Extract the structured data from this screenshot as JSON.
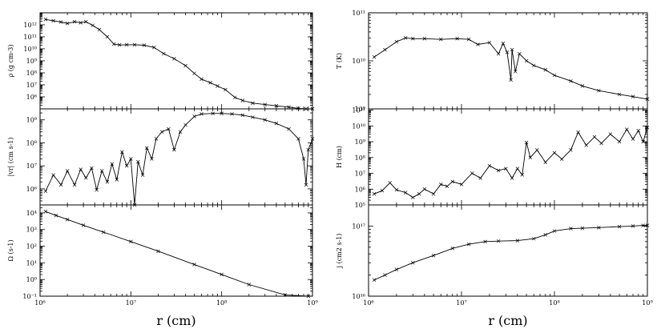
{
  "chart_data": [
    {
      "id": "rho",
      "type": "line",
      "ylabel": "ρ (g cm-3)",
      "xlabel": "",
      "xscale": "log",
      "yscale": "log",
      "xlim": [
        1000000.0,
        1000000000.0
      ],
      "ylim": [
        100000.0,
        10000000000000.0
      ],
      "xticks": [],
      "yticks": [
        {
          "v": 1000000.0,
          "t": "10⁶"
        },
        {
          "v": 10000000.0,
          "t": "10⁷"
        },
        {
          "v": 100000000.0,
          "t": "10⁸"
        },
        {
          "v": 1000000000.0,
          "t": "10⁹"
        },
        {
          "v": 10000000000.0,
          "t": "10¹⁰"
        },
        {
          "v": 100000000000.0,
          "t": "10¹¹"
        },
        {
          "v": 1000000000000.0,
          "t": "10¹²"
        }
      ],
      "x": [
        1150000.0,
        1400000.0,
        1700000.0,
        2000000.0,
        2400000.0,
        2800000.0,
        3200000.0,
        3800000.0,
        4500000.0,
        5500000.0,
        6500000.0,
        7500000.0,
        9000000.0,
        11000000.0,
        14000000.0,
        18000000.0,
        23000000.0,
        30000000.0,
        40000000.0,
        50000000.0,
        60000000.0,
        75000000.0,
        90000000.0,
        110000000.0,
        140000000.0,
        170000000.0,
        220000000.0,
        300000000.0,
        400000000.0,
        550000000.0,
        700000000.0,
        850000000.0,
        1000000000.0
      ],
      "y": [
        2800000000000.0,
        2200000000000.0,
        1700000000000.0,
        1300000000000.0,
        1800000000000.0,
        1500000000000.0,
        1800000000000.0,
        900000000000.0,
        400000000000.0,
        100000000000.0,
        25000000000.0,
        21000000000.0,
        22000000000.0,
        22000000000.0,
        20000000000.0,
        13000000000.0,
        4000000000.0,
        1500000000.0,
        400000000.0,
        90000000.0,
        30000000.0,
        15000000.0,
        8000000.0,
        4000000.0,
        900000.0,
        500000.0,
        300000.0,
        230000.0,
        180000.0,
        140000.0,
        110000.0,
        80000.0,
        50000.0
      ]
    },
    {
      "id": "vr",
      "type": "line",
      "ylabel": "|vr| (cm s-1)",
      "xlabel": "",
      "xscale": "log",
      "yscale": "log",
      "xlim": [
        1000000.0,
        1000000000.0
      ],
      "ylim": [
        200000.0,
        3000000000.0
      ],
      "xticks": [],
      "yticks": [
        {
          "v": 1000000.0,
          "t": "10⁶"
        },
        {
          "v": 10000000.0,
          "t": "10⁷"
        },
        {
          "v": 100000000.0,
          "t": "10⁸"
        },
        {
          "v": 1000000000.0,
          "t": "10⁹"
        }
      ],
      "x": [
        1150000.0,
        1400000.0,
        1700000.0,
        2000000.0,
        2400000.0,
        2800000.0,
        3200000.0,
        3700000.0,
        4200000.0,
        4800000.0,
        5500000.0,
        6200000.0,
        7000000.0,
        8000000.0,
        9000000.0,
        10000000.0,
        11000000.0,
        12000000.0,
        13500000.0,
        15000000.0,
        17000000.0,
        19000000.0,
        22000000.0,
        26000000.0,
        30000000.0,
        35000000.0,
        40000000.0,
        50000000.0,
        60000000.0,
        80000000.0,
        100000000.0,
        130000000.0,
        170000000.0,
        220000000.0,
        300000000.0,
        400000000.0,
        550000000.0,
        700000000.0,
        800000000.0,
        850000000.0,
        900000000.0,
        1000000000.0
      ],
      "y": [
        800000.0,
        4000000.0,
        1500000.0,
        6000000.0,
        1500000.0,
        7000000.0,
        3000000.0,
        8000000.0,
        900000.0,
        6000000.0,
        2000000.0,
        12000000.0,
        2500000.0,
        40000000.0,
        10000000.0,
        20000000.0,
        200000.0,
        15000000.0,
        4000000.0,
        60000000.0,
        20000000.0,
        150000000.0,
        300000000.0,
        400000000.0,
        50000000.0,
        300000000.0,
        600000000.0,
        1400000000.0,
        1800000000.0,
        1900000000.0,
        1900000000.0,
        1800000000.0,
        1600000000.0,
        1300000000.0,
        1000000000.0,
        700000000.0,
        400000000.0,
        150000000.0,
        20000000.0,
        1500000.0,
        50000000.0,
        150000000.0
      ]
    },
    {
      "id": "omega",
      "type": "line",
      "ylabel": "Ω (s-1)",
      "xlabel": "r (cm)",
      "xscale": "log",
      "yscale": "log",
      "xlim": [
        1000000.0,
        1000000000.0
      ],
      "ylim": [
        0.1,
        30000.0
      ],
      "xticks": [
        {
          "v": 1000000.0,
          "t": "10⁶"
        },
        {
          "v": 10000000.0,
          "t": "10⁷"
        },
        {
          "v": 100000000.0,
          "t": "10⁸"
        },
        {
          "v": 1000000000.0,
          "t": "10⁹"
        }
      ],
      "yticks": [
        {
          "v": 0.1,
          "t": "10⁻¹"
        },
        {
          "v": 1,
          "t": "10⁰"
        },
        {
          "v": 10,
          "t": "10¹"
        },
        {
          "v": 100,
          "t": "10²"
        },
        {
          "v": 1000,
          "t": "10³"
        },
        {
          "v": 10000,
          "t": "10⁴"
        }
      ],
      "x": [
        1150000.0,
        1500000.0,
        2000000.0,
        3000000.0,
        5000000.0,
        10000000.0,
        20000000.0,
        50000000.0,
        100000000.0,
        200000000.0,
        500000000.0,
        900000000.0
      ],
      "y": [
        12000.0,
        7000.0,
        4000.0,
        1800.0,
        700.0,
        190.0,
        50.0,
        8,
        2,
        0.5,
        0.12,
        0.08
      ]
    },
    {
      "id": "temp",
      "type": "line",
      "ylabel": "T (K)",
      "xlabel": "",
      "xscale": "log",
      "yscale": "log",
      "xlim": [
        1000000.0,
        1000000000.0
      ],
      "ylim": [
        1000000000.0,
        100000000000.0
      ],
      "xticks": [],
      "yticks": [
        {
          "v": 1000000000.0,
          "t": "10⁹"
        },
        {
          "v": 10000000000.0,
          "t": "10¹⁰"
        },
        {
          "v": 100000000000.0,
          "t": "10¹¹"
        }
      ],
      "x": [
        1150000.0,
        1500000.0,
        2000000.0,
        2500000.0,
        3000000.0,
        4000000.0,
        6000000.0,
        9000000.0,
        12000000.0,
        15000000.0,
        20000000.0,
        25000000.0,
        28000000.0,
        31000000.0,
        34000000.0,
        35000000.0,
        38000000.0,
        42000000.0,
        50000000.0,
        60000000.0,
        80000000.0,
        100000000.0,
        150000000.0,
        200000000.0,
        300000000.0,
        500000000.0,
        700000000.0,
        1000000000.0
      ],
      "y": [
        12000000000.0,
        17000000000.0,
        25000000000.0,
        30000000000.0,
        29000000000.0,
        29000000000.0,
        28000000000.0,
        29000000000.0,
        28000000000.0,
        22000000000.0,
        24000000000.0,
        14000000000.0,
        23000000000.0,
        15000000000.0,
        4000000000.0,
        17000000000.0,
        6000000000.0,
        14000000000.0,
        10000000000.0,
        8000000000.0,
        6500000000.0,
        5000000000.0,
        3800000000.0,
        3000000000.0,
        2400000000.0,
        2000000000.0,
        1800000000.0,
        1600000000.0
      ]
    },
    {
      "id": "height",
      "type": "line",
      "ylabel": "H (cm)",
      "xlabel": "",
      "xscale": "log",
      "yscale": "log",
      "xlim": [
        1000000.0,
        1000000000.0
      ],
      "ylim": [
        100000.0,
        120000000000.0
      ],
      "xticks": [],
      "yticks": [
        {
          "v": 100000.0,
          "t": "10⁵"
        },
        {
          "v": 1000000.0,
          "t": "10⁶"
        },
        {
          "v": 10000000.0,
          "t": "10⁷"
        },
        {
          "v": 100000000.0,
          "t": "10⁸"
        },
        {
          "v": 1000000000.0,
          "t": "10⁹"
        },
        {
          "v": 10000000000.0,
          "t": "10¹⁰"
        },
        {
          "v": 100000000000.0,
          "t": "10¹¹"
        }
      ],
      "x": [
        1150000.0,
        1400000.0,
        1700000.0,
        2000000.0,
        2500000.0,
        3000000.0,
        3500000.0,
        4000000.0,
        5000000.0,
        6000000.0,
        7000000.0,
        8000000.0,
        10000000.0,
        13000000.0,
        16000000.0,
        20000000.0,
        25000000.0,
        30000000.0,
        35000000.0,
        40000000.0,
        45000000.0,
        50000000.0,
        55000000.0,
        65000000.0,
        80000000.0,
        100000000.0,
        120000000.0,
        150000000.0,
        180000000.0,
        220000000.0,
        270000000.0,
        320000000.0,
        400000000.0,
        500000000.0,
        600000000.0,
        700000000.0,
        800000000.0,
        900000000.0,
        1000000000.0
      ],
      "y": [
        500000.0,
        800000.0,
        2500000.0,
        900000.0,
        600000.0,
        300000.0,
        500000.0,
        1000000.0,
        500000.0,
        2000000.0,
        1500000.0,
        3000000.0,
        2000000.0,
        10000000.0,
        5000000.0,
        30000000.0,
        15000000.0,
        20000000.0,
        5000000.0,
        20000000.0,
        8000000.0,
        900000000.0,
        100000000.0,
        300000000.0,
        50000000.0,
        200000000.0,
        80000000.0,
        300000000.0,
        4000000000.0,
        600000000.0,
        2000000000.0,
        800000000.0,
        3000000000.0,
        1000000000.0,
        6000000000.0,
        1500000000.0,
        5000000000.0,
        1000000000.0,
        8000000000.0
      ]
    },
    {
      "id": "angmom",
      "type": "line",
      "ylabel": "j (cm2 s-1)",
      "xlabel": "r (cm)",
      "xscale": "log",
      "yscale": "log",
      "xlim": [
        1000000.0,
        1000000000.0
      ],
      "ylim": [
        1e+16,
        2e+17
      ],
      "xticks": [
        {
          "v": 1000000.0,
          "t": "10⁶"
        },
        {
          "v": 10000000.0,
          "t": "10⁷"
        },
        {
          "v": 100000000.0,
          "t": "10⁸"
        },
        {
          "v": 1000000000.0,
          "t": "10⁹"
        }
      ],
      "yticks": [
        {
          "v": 1e+16,
          "t": "10¹⁶"
        },
        {
          "v": 1e+17,
          "t": "10¹⁷"
        }
      ],
      "x": [
        1150000.0,
        1500000.0,
        2000000.0,
        3000000.0,
        5000000.0,
        8000000.0,
        12000000.0,
        18000000.0,
        25000000.0,
        40000000.0,
        60000000.0,
        80000000.0,
        100000000.0,
        150000000.0,
        200000000.0,
        300000000.0,
        500000000.0,
        700000000.0,
        900000000.0,
        1000000000.0
      ],
      "y": [
        1.7e+16,
        2e+16,
        2.4e+16,
        3e+16,
        3.8e+16,
        4.8e+16,
        5.5e+16,
        6e+16,
        6.1e+16,
        6.2e+16,
        6.6e+16,
        7.5e+16,
        8.5e+16,
        9.2e+16,
        9.3e+16,
        9.5e+16,
        9.8e+16,
        1e+17,
        1.02e+17,
        1.02e+17
      ]
    }
  ]
}
